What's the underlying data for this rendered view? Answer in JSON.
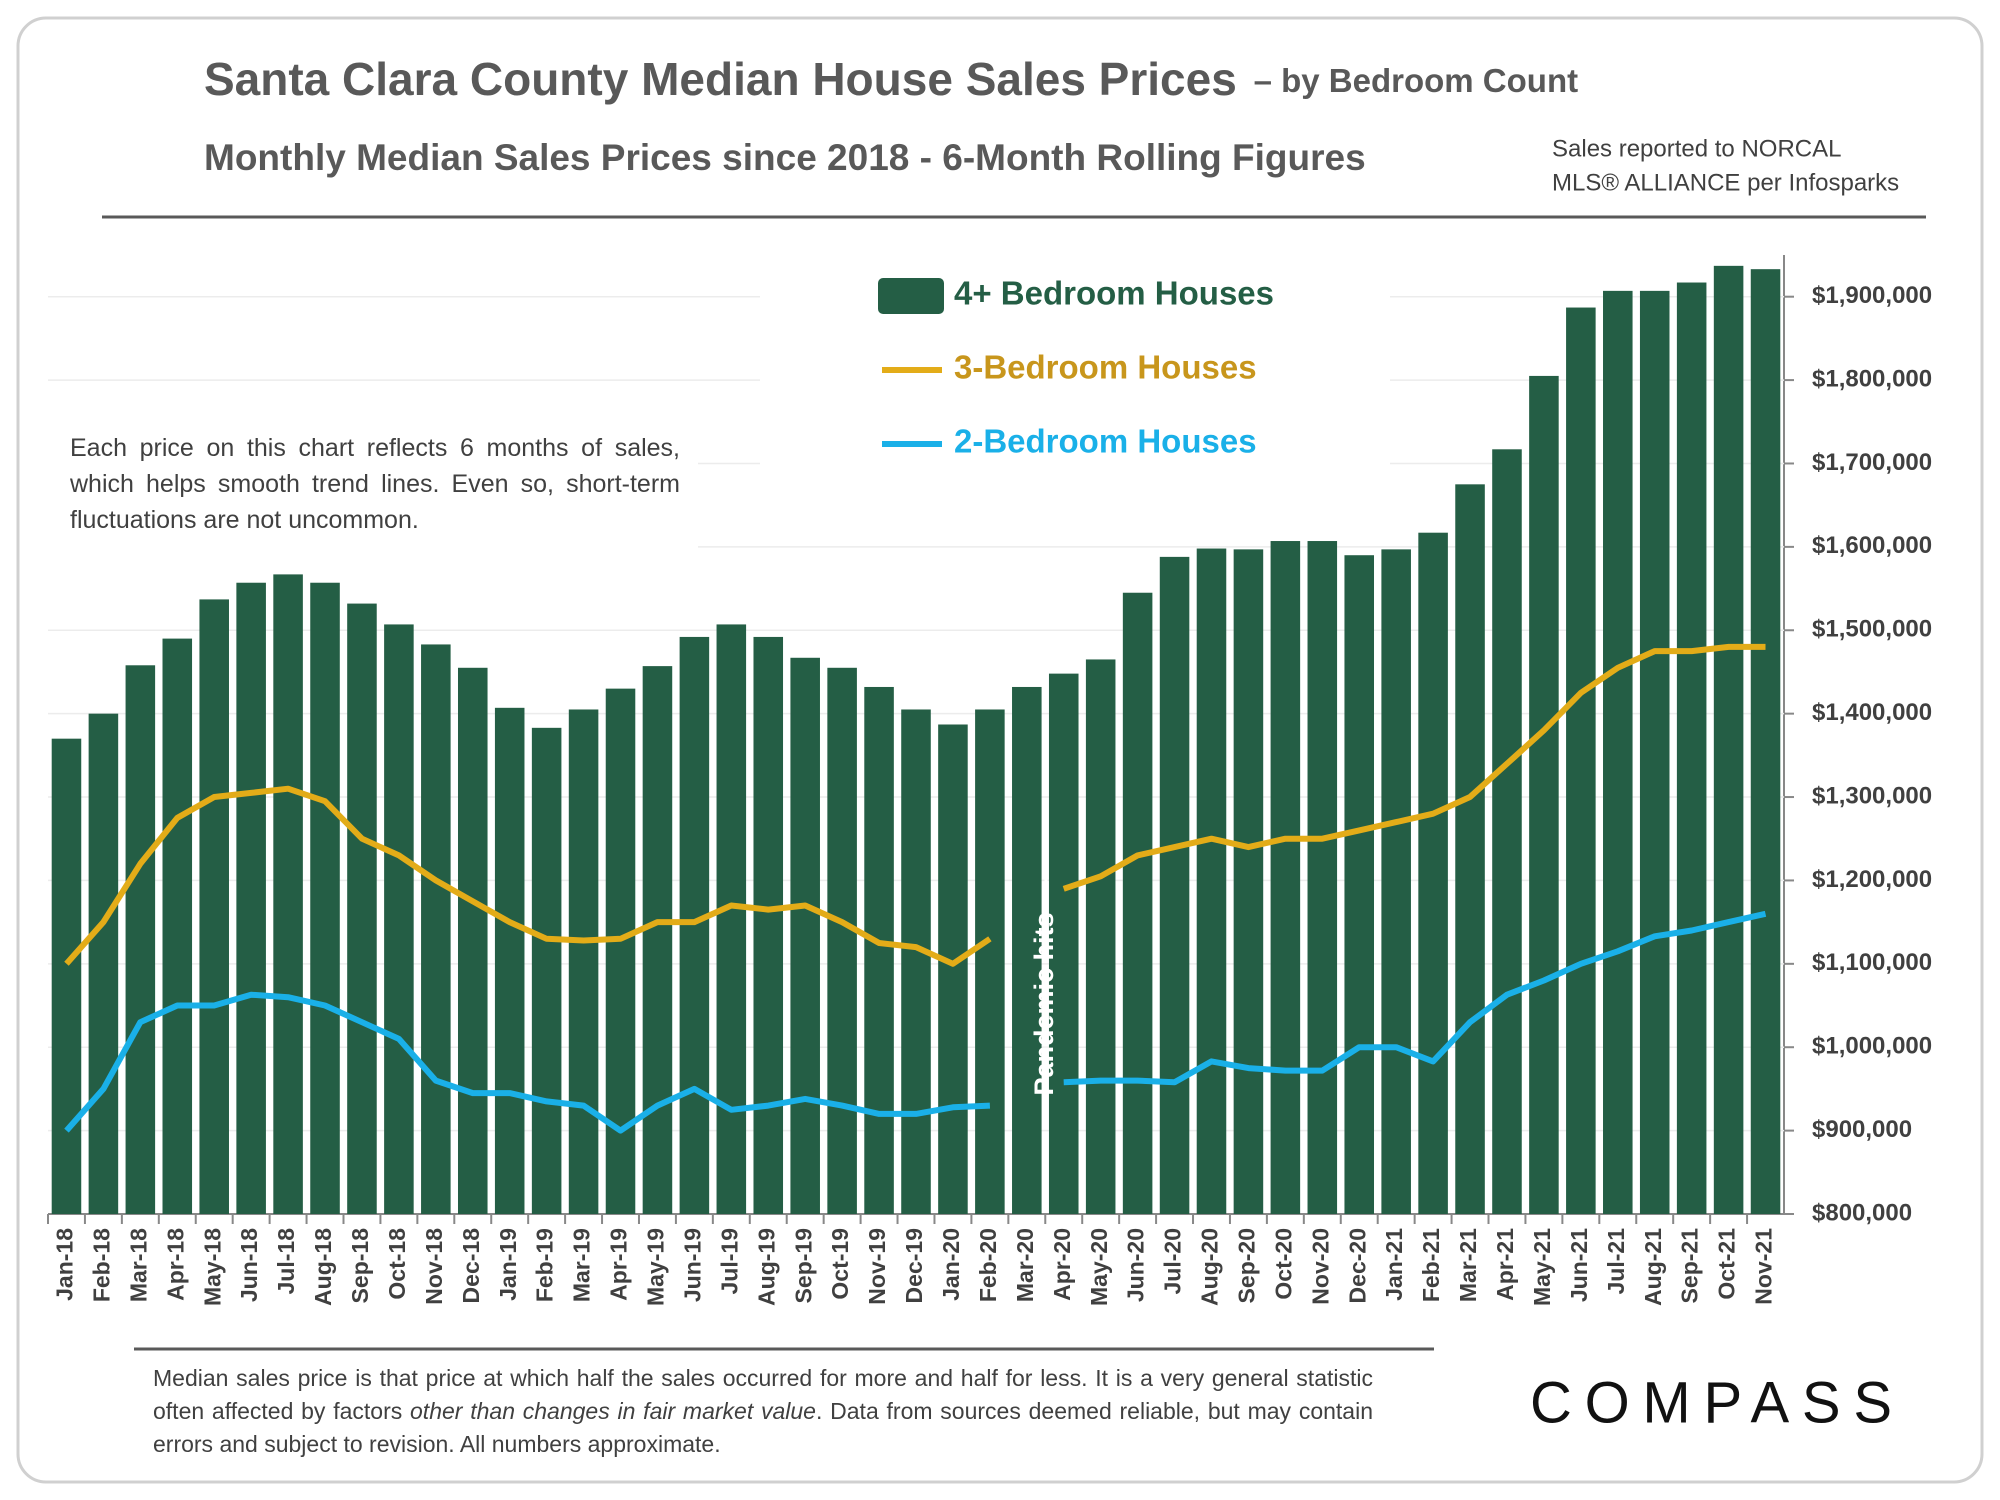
{
  "chart_data": {
    "type": "bar",
    "title": "Santa Clara County Median House Sales Prices",
    "title_suffix": "– by Bedroom Count",
    "subtitle": "Monthly Median Sales Prices since 2018 - 6-Month Rolling Figures",
    "source": [
      "Sales reported to NORCAL",
      "MLS® ALLIANCE per Infosparks"
    ],
    "annotation": "Each price on this chart reflects 6 months of sales, which helps smooth trend lines. Even so, short-term fluctuations are not uncommon.",
    "event_label": "Pandemic hits",
    "note": [
      "Median sales price is that price at which half the sales occurred for more and half for less. It is a very general statistic often affected by factors ",
      "other than changes in fair market value",
      ". Data from sources deemed reliable, but may contain errors and subject to revision. All numbers approximate."
    ],
    "logo": "COMPASS",
    "categories": [
      "Jan-18",
      "Feb-18",
      "Mar-18",
      "Apr-18",
      "May-18",
      "Jun-18",
      "Jul-18",
      "Aug-18",
      "Sep-18",
      "Oct-18",
      "Nov-18",
      "Dec-18",
      "Jan-19",
      "Feb-19",
      "Mar-19",
      "Apr-19",
      "May-19",
      "Jun-19",
      "Jul-19",
      "Aug-19",
      "Sep-19",
      "Oct-19",
      "Nov-19",
      "Dec-19",
      "Jan-20",
      "Feb-20",
      "Mar-20",
      "Apr-20",
      "May-20",
      "Jun-20",
      "Jul-20",
      "Aug-20",
      "Sep-20",
      "Oct-20",
      "Nov-20",
      "Dec-20",
      "Jan-21",
      "Feb-21",
      "Mar-21",
      "Apr-21",
      "May-21",
      "Jun-21",
      "Jul-21",
      "Aug-21",
      "Sep-21",
      "Oct-21",
      "Nov-21"
    ],
    "series": [
      {
        "name": "4+ Bedroom Houses",
        "type": "bar",
        "color": "#245e45",
        "values": [
          1370000,
          1400000,
          1458000,
          1490000,
          1537000,
          1557000,
          1567000,
          1557000,
          1532000,
          1507000,
          1483000,
          1455000,
          1407000,
          1383000,
          1405000,
          1430000,
          1457000,
          1492000,
          1507000,
          1492000,
          1467000,
          1455000,
          1432000,
          1405000,
          1387000,
          1405000,
          1432000,
          1448000,
          1465000,
          1545000,
          1588000,
          1598000,
          1597000,
          1607000,
          1607000,
          1590000,
          1597000,
          1617000,
          1675000,
          1717000,
          1805000,
          1887000,
          1907000,
          1907000,
          1917000,
          1937000,
          1933000
        ]
      },
      {
        "name": "3-Bedroom Houses",
        "type": "line",
        "color": "#e3ac18",
        "label_color": "#c8961c",
        "values": [
          1100000,
          1150000,
          1220000,
          1275000,
          1300000,
          1305000,
          1310000,
          1295000,
          1250000,
          1230000,
          1200000,
          1175000,
          1150000,
          1130000,
          1128000,
          1130000,
          1150000,
          1150000,
          1170000,
          1165000,
          1170000,
          1150000,
          1125000,
          1120000,
          1100000,
          1130000,
          null,
          1190000,
          1205000,
          1230000,
          1240000,
          1250000,
          1240000,
          1250000,
          1250000,
          1260000,
          1270000,
          1280000,
          1300000,
          1340000,
          1380000,
          1425000,
          1455000,
          1475000,
          1475000,
          1480000,
          1480000
        ]
      },
      {
        "name": "2-Bedroom Houses",
        "type": "line",
        "color": "#1ab0e8",
        "label_color": "#1ab0e8",
        "values": [
          900000,
          950000,
          1030000,
          1050000,
          1050000,
          1063000,
          1060000,
          1050000,
          1030000,
          1010000,
          960000,
          945000,
          945000,
          935000,
          930000,
          900000,
          930000,
          950000,
          925000,
          930000,
          938000,
          930000,
          920000,
          920000,
          928000,
          930000,
          null,
          958000,
          960000,
          960000,
          958000,
          983000,
          975000,
          972000,
          972000,
          1000000,
          1000000,
          983000,
          1030000,
          1063000,
          1080000,
          1100000,
          1115000,
          1133000,
          1140000,
          1150000,
          1160000
        ]
      }
    ],
    "ylim": [
      800000,
      1950000
    ],
    "yticks": [
      {
        "value": 800000,
        "label": "$800,000"
      },
      {
        "value": 900000,
        "label": "$900,000"
      },
      {
        "value": 1000000,
        "label": "$1,000,000"
      },
      {
        "value": 1100000,
        "label": "$1,100,000"
      },
      {
        "value": 1200000,
        "label": "$1,200,000"
      },
      {
        "value": 1300000,
        "label": "$1,300,000"
      },
      {
        "value": 1400000,
        "label": "$1,400,000"
      },
      {
        "value": 1500000,
        "label": "$1,500,000"
      },
      {
        "value": 1600000,
        "label": "$1,600,000"
      },
      {
        "value": 1700000,
        "label": "$1,700,000"
      },
      {
        "value": 1800000,
        "label": "$1,800,000"
      },
      {
        "value": 1900000,
        "label": "$1,900,000"
      }
    ],
    "grid": true,
    "y_axis_side": "right"
  }
}
